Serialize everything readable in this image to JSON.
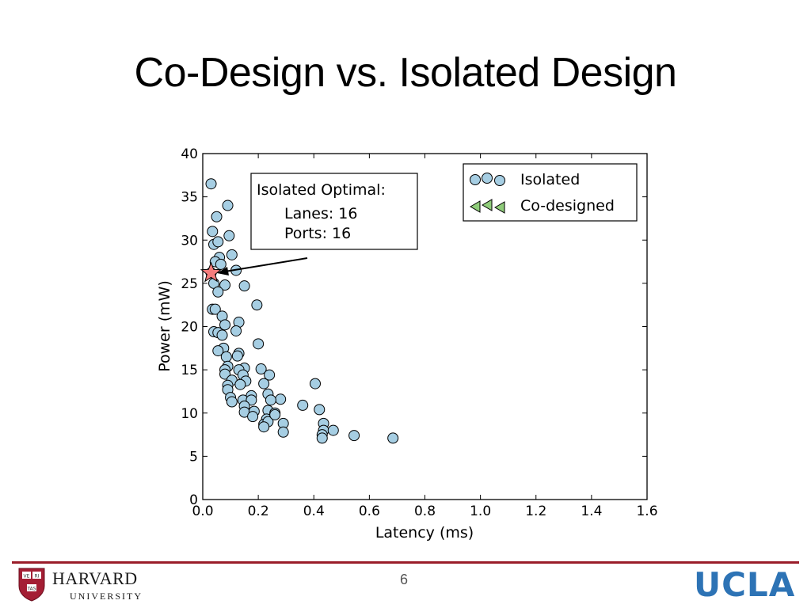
{
  "slide": {
    "title": "Co-Design vs. Isolated Design",
    "page_number": "6"
  },
  "footer": {
    "left_logo": {
      "name": "HARVARD",
      "subtitle": "UNIVERSITY",
      "shield_text": [
        "VE",
        "RI",
        "TAS"
      ]
    },
    "right_logo": {
      "text": "UCLA"
    },
    "colors": {
      "divider": "#9a1d2a",
      "ucla_blue": "#2d73b5"
    }
  },
  "chart_data": {
    "type": "scatter",
    "xlabel": "Latency (ms)",
    "ylabel": "Power (mW)",
    "xlim": [
      0,
      1.6
    ],
    "ylim": [
      0,
      40
    ],
    "xticks": [
      "0.0",
      "0.2",
      "0.4",
      "0.6",
      "0.8",
      "1.0",
      "1.2",
      "1.4",
      "1.6"
    ],
    "yticks": [
      "0",
      "5",
      "10",
      "15",
      "20",
      "25",
      "30",
      "35",
      "40"
    ],
    "grid": false,
    "legend": {
      "position": "top-right",
      "entries": [
        "Isolated",
        "Co-designed"
      ]
    },
    "series": [
      {
        "name": "Isolated",
        "marker": "circle",
        "color": "#a6cee3",
        "points": [
          [
            0.03,
            36.5
          ],
          [
            0.09,
            34.0
          ],
          [
            0.05,
            32.7
          ],
          [
            0.035,
            31.0
          ],
          [
            0.095,
            30.5
          ],
          [
            0.04,
            29.5
          ],
          [
            0.055,
            29.8
          ],
          [
            0.105,
            28.3
          ],
          [
            0.06,
            28.0
          ],
          [
            0.045,
            27.5
          ],
          [
            0.065,
            27.2
          ],
          [
            0.12,
            26.5
          ],
          [
            0.03,
            26.2
          ],
          [
            0.04,
            25.0
          ],
          [
            0.08,
            24.8
          ],
          [
            0.15,
            24.7
          ],
          [
            0.055,
            24.0
          ],
          [
            0.195,
            22.5
          ],
          [
            0.035,
            22.0
          ],
          [
            0.045,
            22.0
          ],
          [
            0.07,
            21.2
          ],
          [
            0.08,
            20.2
          ],
          [
            0.13,
            20.5
          ],
          [
            0.04,
            19.4
          ],
          [
            0.055,
            19.3
          ],
          [
            0.12,
            19.5
          ],
          [
            0.07,
            19.0
          ],
          [
            0.2,
            18.0
          ],
          [
            0.075,
            17.5
          ],
          [
            0.055,
            17.2
          ],
          [
            0.13,
            16.9
          ],
          [
            0.085,
            16.5
          ],
          [
            0.125,
            16.6
          ],
          [
            0.09,
            15.4
          ],
          [
            0.15,
            15.2
          ],
          [
            0.21,
            15.1
          ],
          [
            0.08,
            15.0
          ],
          [
            0.13,
            15.0
          ],
          [
            0.08,
            14.5
          ],
          [
            0.145,
            14.4
          ],
          [
            0.24,
            14.4
          ],
          [
            0.105,
            13.8
          ],
          [
            0.155,
            13.7
          ],
          [
            0.09,
            13.2
          ],
          [
            0.135,
            13.3
          ],
          [
            0.22,
            13.4
          ],
          [
            0.405,
            13.4
          ],
          [
            0.09,
            12.7
          ],
          [
            0.175,
            12.0
          ],
          [
            0.235,
            12.2
          ],
          [
            0.1,
            11.8
          ],
          [
            0.145,
            11.5
          ],
          [
            0.28,
            11.6
          ],
          [
            0.105,
            11.3
          ],
          [
            0.175,
            11.5
          ],
          [
            0.245,
            11.5
          ],
          [
            0.15,
            10.8
          ],
          [
            0.36,
            10.9
          ],
          [
            0.42,
            10.4
          ],
          [
            0.15,
            10.1
          ],
          [
            0.185,
            10.2
          ],
          [
            0.235,
            10.3
          ],
          [
            0.26,
            10.0
          ],
          [
            0.18,
            9.6
          ],
          [
            0.23,
            9.3
          ],
          [
            0.29,
            8.8
          ],
          [
            0.22,
            8.7
          ],
          [
            0.235,
            9.0
          ],
          [
            0.435,
            8.8
          ],
          [
            0.22,
            8.4
          ],
          [
            0.435,
            8.0
          ],
          [
            0.47,
            8.0
          ],
          [
            0.29,
            7.8
          ],
          [
            0.43,
            7.5
          ],
          [
            0.545,
            7.4
          ],
          [
            0.685,
            7.1
          ],
          [
            0.43,
            7.1
          ],
          [
            0.26,
            9.8
          ]
        ]
      },
      {
        "name": "Co-designed",
        "marker": "triangle-left",
        "color": "#8fcc7a",
        "points": []
      }
    ],
    "highlight": {
      "marker": "star",
      "color": "#f47c7c",
      "point": [
        0.03,
        26.2
      ],
      "annotation_lines": [
        "Isolated Optimal:",
        "Lanes: 16",
        "Ports: 16"
      ]
    }
  }
}
